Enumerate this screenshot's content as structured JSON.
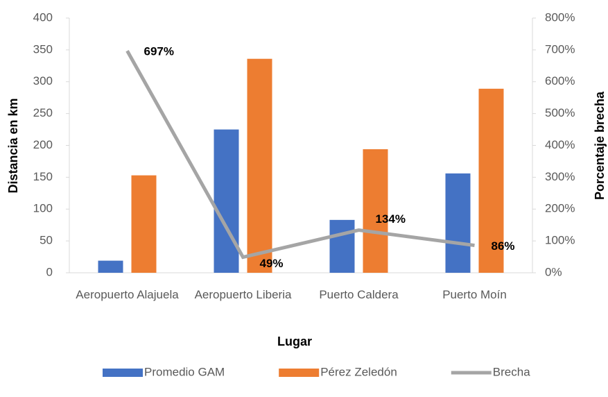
{
  "chart_data": {
    "type": "bar",
    "xlabel": "Lugar",
    "ylabel": "Distancia en km",
    "y2label": "Porcentaje brecha",
    "categories": [
      "Aeropuerto Alajuela",
      "Aeropuerto Liberia",
      "Puerto Caldera",
      "Puerto Moín"
    ],
    "series": [
      {
        "name": "Promedio GAM",
        "color": "#4472c4",
        "type": "bar",
        "values": [
          19,
          225,
          83,
          156
        ]
      },
      {
        "name": "Pérez Zeledón",
        "color": "#ed7d31",
        "type": "bar",
        "values": [
          153,
          336,
          194,
          289
        ]
      },
      {
        "name": "Brecha",
        "color": "#a5a5a5",
        "type": "line",
        "axis": "y2",
        "values": [
          697,
          49,
          134,
          86
        ],
        "value_labels": [
          "697%",
          "49%",
          "134%",
          "86%"
        ]
      }
    ],
    "ylim": [
      0,
      400
    ],
    "yticks": [
      0,
      50,
      100,
      150,
      200,
      250,
      300,
      350,
      400
    ],
    "y2lim": [
      0,
      800
    ],
    "y2ticks": [
      {
        "value": 0,
        "label": "0%"
      },
      {
        "value": 100,
        "label": "100%"
      },
      {
        "value": 200,
        "label": "200%"
      },
      {
        "value": 300,
        "label": "300%"
      },
      {
        "value": 400,
        "label": "400%"
      },
      {
        "value": 500,
        "label": "500%"
      },
      {
        "value": 600,
        "label": "600%"
      },
      {
        "value": 700,
        "label": "700%"
      },
      {
        "value": 800,
        "label": "800%"
      }
    ],
    "legend": "bottom"
  }
}
